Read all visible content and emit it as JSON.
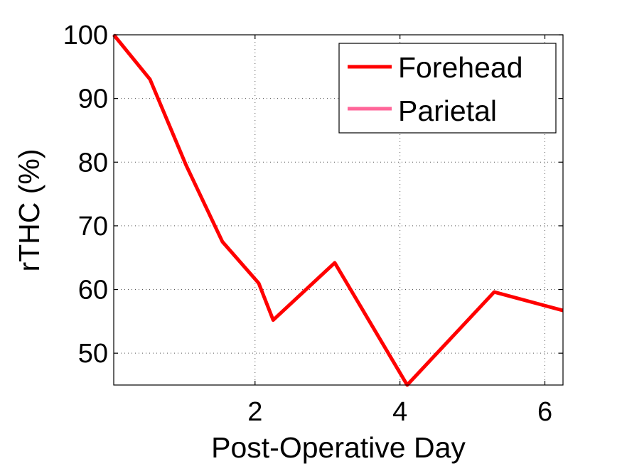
{
  "chart_data": {
    "type": "line",
    "xlabel": "Post-Operative Day",
    "ylabel": "rTHC (%)",
    "xlim": [
      0.05,
      6.25
    ],
    "ylim": [
      45,
      100
    ],
    "xticks": [
      2,
      4,
      6
    ],
    "yticks": [
      50,
      60,
      70,
      80,
      90,
      100
    ],
    "grid": true,
    "legend_position": "top-right",
    "series": [
      {
        "name": "Forehead",
        "color": "#ff0000",
        "x": [
          0.05,
          0.55,
          1.05,
          1.55,
          2.05,
          2.25,
          3.1,
          4.1,
          5.3,
          6.25
        ],
        "y": [
          100,
          93,
          79.5,
          67.5,
          61,
          55.2,
          64.2,
          45,
          59.6,
          56.7
        ]
      },
      {
        "name": "Parietal",
        "color": "#ff6699",
        "x": [],
        "y": []
      }
    ]
  }
}
